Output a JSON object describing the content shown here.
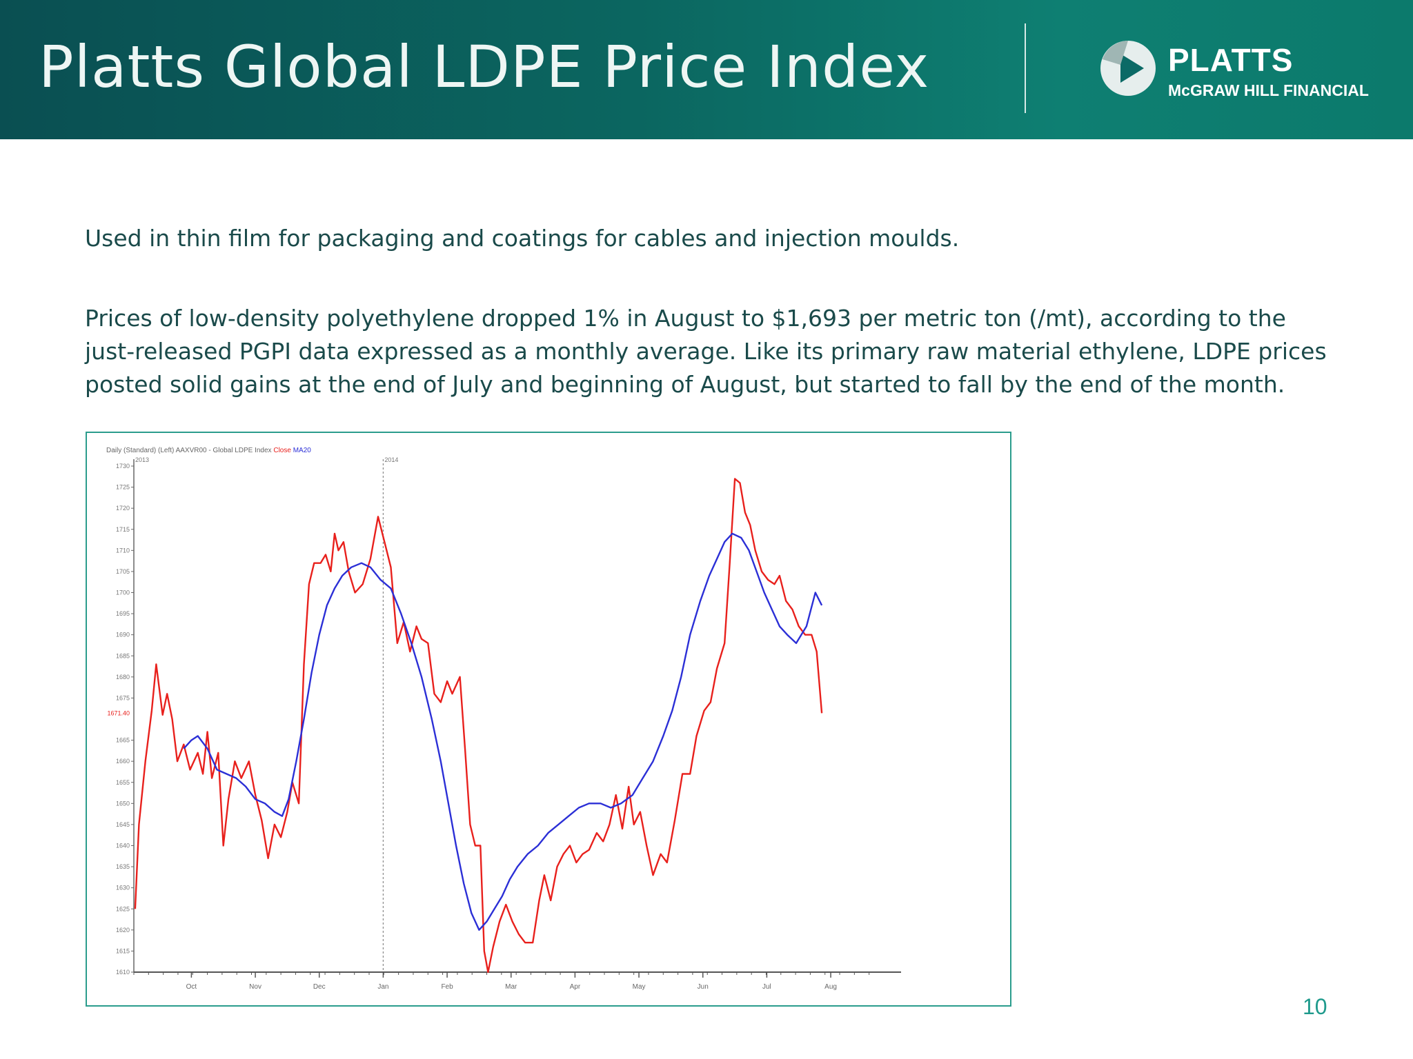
{
  "header": {
    "title": "Platts Global LDPE Price Index",
    "brand": "PLATTS",
    "brand_sub": "McGRAW HILL FINANCIAL"
  },
  "body": {
    "paragraph_1": "Used in thin film for packaging and coatings for cables and injection moulds.",
    "paragraph_2": "Prices of low-density polyethylene dropped 1% in August to $1,693 per metric ton (/mt), according to the just-released PGPI data expressed as a monthly average. Like its primary raw material ethylene, LDPE prices posted solid gains at the end of July and beginning of August, but started to fall by the end of the month."
  },
  "page_number": "10",
  "colors": {
    "header_dark": "#0a4f52",
    "header_light": "#0e7f72",
    "text": "#1a4a4a",
    "frame": "#2a9c8c",
    "close_line": "#e8201c",
    "ma_line": "#2b2fd6"
  },
  "chart_data": {
    "type": "line",
    "legend_text": "Daily (Standard) (Left)   AAXVR00 - Global LDPE Index",
    "legend_series": [
      "Close",
      "MA20"
    ],
    "year_labels": [
      {
        "label": "2013",
        "x": 0
      },
      {
        "label": "2014",
        "x": 3.0
      }
    ],
    "y_ticks": [
      1610,
      1615,
      1620,
      1625,
      1630,
      1635,
      1640,
      1645,
      1650,
      1655,
      1660,
      1665,
      1675,
      1680,
      1685,
      1690,
      1695,
      1700,
      1705,
      1710,
      1715,
      1720,
      1725,
      1730
    ],
    "ylim": [
      1610,
      1730
    ],
    "xlim": [
      -0.9,
      11.1
    ],
    "x_ticks": [
      {
        "label": "Oct",
        "x": 0
      },
      {
        "label": "Nov",
        "x": 1
      },
      {
        "label": "Dec",
        "x": 2
      },
      {
        "label": "Jan",
        "x": 3
      },
      {
        "label": "Feb",
        "x": 4
      },
      {
        "label": "Mar",
        "x": 5
      },
      {
        "label": "Apr",
        "x": 6
      },
      {
        "label": "May",
        "x": 7
      },
      {
        "label": "Jun",
        "x": 8
      },
      {
        "label": "Jul",
        "x": 9
      },
      {
        "label": "Aug",
        "x": 10
      }
    ],
    "last_value_label": "1671.40",
    "last_value": 1671.4,
    "grid": false,
    "series": [
      {
        "name": "Close",
        "points": [
          [
            -0.88,
            1625
          ],
          [
            -0.82,
            1645
          ],
          [
            -0.72,
            1660
          ],
          [
            -0.62,
            1672
          ],
          [
            -0.55,
            1683
          ],
          [
            -0.45,
            1671
          ],
          [
            -0.38,
            1676
          ],
          [
            -0.3,
            1670
          ],
          [
            -0.22,
            1660
          ],
          [
            -0.12,
            1664
          ],
          [
            -0.02,
            1658
          ],
          [
            0.1,
            1662
          ],
          [
            0.18,
            1657
          ],
          [
            0.25,
            1667
          ],
          [
            0.32,
            1656
          ],
          [
            0.42,
            1662
          ],
          [
            0.5,
            1640
          ],
          [
            0.58,
            1651
          ],
          [
            0.68,
            1660
          ],
          [
            0.78,
            1656
          ],
          [
            0.9,
            1660
          ],
          [
            1.0,
            1652
          ],
          [
            1.1,
            1646
          ],
          [
            1.2,
            1637
          ],
          [
            1.3,
            1645
          ],
          [
            1.4,
            1642
          ],
          [
            1.5,
            1648
          ],
          [
            1.58,
            1655
          ],
          [
            1.68,
            1650
          ],
          [
            1.76,
            1683
          ],
          [
            1.84,
            1702
          ],
          [
            1.92,
            1707
          ],
          [
            2.02,
            1707
          ],
          [
            2.1,
            1709
          ],
          [
            2.18,
            1705
          ],
          [
            2.24,
            1714
          ],
          [
            2.3,
            1710
          ],
          [
            2.38,
            1712
          ],
          [
            2.46,
            1705
          ],
          [
            2.56,
            1700
          ],
          [
            2.68,
            1702
          ],
          [
            2.8,
            1708
          ],
          [
            2.92,
            1718
          ],
          [
            3.02,
            1712
          ],
          [
            3.12,
            1706
          ],
          [
            3.22,
            1688
          ],
          [
            3.32,
            1693
          ],
          [
            3.42,
            1686
          ],
          [
            3.52,
            1692
          ],
          [
            3.6,
            1689
          ],
          [
            3.7,
            1688
          ],
          [
            3.8,
            1676
          ],
          [
            3.9,
            1674
          ],
          [
            4.0,
            1679
          ],
          [
            4.08,
            1676
          ],
          [
            4.2,
            1680
          ],
          [
            4.28,
            1663
          ],
          [
            4.36,
            1645
          ],
          [
            4.44,
            1640
          ],
          [
            4.52,
            1640
          ],
          [
            4.58,
            1615
          ],
          [
            4.64,
            1610
          ],
          [
            4.72,
            1616
          ],
          [
            4.82,
            1622
          ],
          [
            4.92,
            1626
          ],
          [
            5.02,
            1622
          ],
          [
            5.12,
            1619
          ],
          [
            5.22,
            1617
          ],
          [
            5.34,
            1617
          ],
          [
            5.44,
            1627
          ],
          [
            5.52,
            1633
          ],
          [
            5.62,
            1627
          ],
          [
            5.72,
            1635
          ],
          [
            5.82,
            1638
          ],
          [
            5.92,
            1640
          ],
          [
            6.02,
            1636
          ],
          [
            6.12,
            1638
          ],
          [
            6.22,
            1639
          ],
          [
            6.34,
            1643
          ],
          [
            6.44,
            1641
          ],
          [
            6.54,
            1645
          ],
          [
            6.64,
            1652
          ],
          [
            6.74,
            1644
          ],
          [
            6.84,
            1654
          ],
          [
            6.92,
            1645
          ],
          [
            7.02,
            1648
          ],
          [
            7.12,
            1640
          ],
          [
            7.22,
            1633
          ],
          [
            7.34,
            1638
          ],
          [
            7.44,
            1636
          ],
          [
            7.56,
            1646
          ],
          [
            7.68,
            1657
          ],
          [
            7.8,
            1657
          ],
          [
            7.9,
            1666
          ],
          [
            8.02,
            1672
          ],
          [
            8.12,
            1674
          ],
          [
            8.22,
            1682
          ],
          [
            8.34,
            1688
          ],
          [
            8.42,
            1707
          ],
          [
            8.5,
            1727
          ],
          [
            8.58,
            1726
          ],
          [
            8.66,
            1719
          ],
          [
            8.74,
            1716
          ],
          [
            8.82,
            1710
          ],
          [
            8.92,
            1705
          ],
          [
            9.02,
            1703
          ],
          [
            9.12,
            1702
          ],
          [
            9.2,
            1704
          ],
          [
            9.3,
            1698
          ],
          [
            9.4,
            1696
          ],
          [
            9.5,
            1692
          ],
          [
            9.6,
            1690
          ],
          [
            9.7,
            1690
          ],
          [
            9.78,
            1686
          ],
          [
            9.86,
            1671.4
          ]
        ]
      },
      {
        "name": "MA20",
        "points": [
          [
            -0.12,
            1663
          ],
          [
            0.0,
            1665
          ],
          [
            0.1,
            1666
          ],
          [
            0.25,
            1663
          ],
          [
            0.4,
            1658
          ],
          [
            0.55,
            1657
          ],
          [
            0.7,
            1656
          ],
          [
            0.85,
            1654
          ],
          [
            1.0,
            1651
          ],
          [
            1.15,
            1650
          ],
          [
            1.3,
            1648
          ],
          [
            1.42,
            1647
          ],
          [
            1.52,
            1651
          ],
          [
            1.64,
            1660
          ],
          [
            1.76,
            1670
          ],
          [
            1.88,
            1681
          ],
          [
            2.0,
            1690
          ],
          [
            2.12,
            1697
          ],
          [
            2.24,
            1701
          ],
          [
            2.36,
            1704
          ],
          [
            2.5,
            1706
          ],
          [
            2.66,
            1707
          ],
          [
            2.8,
            1706
          ],
          [
            2.96,
            1703
          ],
          [
            3.12,
            1701
          ],
          [
            3.28,
            1695
          ],
          [
            3.44,
            1688
          ],
          [
            3.6,
            1680
          ],
          [
            3.76,
            1670
          ],
          [
            3.9,
            1660
          ],
          [
            4.02,
            1650
          ],
          [
            4.14,
            1640
          ],
          [
            4.26,
            1631
          ],
          [
            4.38,
            1624
          ],
          [
            4.5,
            1620
          ],
          [
            4.62,
            1622
          ],
          [
            4.74,
            1625
          ],
          [
            4.86,
            1628
          ],
          [
            4.98,
            1632
          ],
          [
            5.1,
            1635
          ],
          [
            5.26,
            1638
          ],
          [
            5.42,
            1640
          ],
          [
            5.58,
            1643
          ],
          [
            5.74,
            1645
          ],
          [
            5.9,
            1647
          ],
          [
            6.06,
            1649
          ],
          [
            6.22,
            1650
          ],
          [
            6.4,
            1650
          ],
          [
            6.56,
            1649
          ],
          [
            6.72,
            1650
          ],
          [
            6.9,
            1652
          ],
          [
            7.06,
            1656
          ],
          [
            7.22,
            1660
          ],
          [
            7.38,
            1666
          ],
          [
            7.52,
            1672
          ],
          [
            7.66,
            1680
          ],
          [
            7.8,
            1690
          ],
          [
            7.96,
            1698
          ],
          [
            8.1,
            1704
          ],
          [
            8.22,
            1708
          ],
          [
            8.34,
            1712
          ],
          [
            8.46,
            1714
          ],
          [
            8.6,
            1713
          ],
          [
            8.72,
            1710
          ],
          [
            8.84,
            1705
          ],
          [
            8.96,
            1700
          ],
          [
            9.08,
            1696
          ],
          [
            9.2,
            1692
          ],
          [
            9.32,
            1690
          ],
          [
            9.46,
            1688
          ],
          [
            9.62,
            1692
          ],
          [
            9.76,
            1700
          ],
          [
            9.86,
            1697
          ]
        ]
      }
    ]
  }
}
